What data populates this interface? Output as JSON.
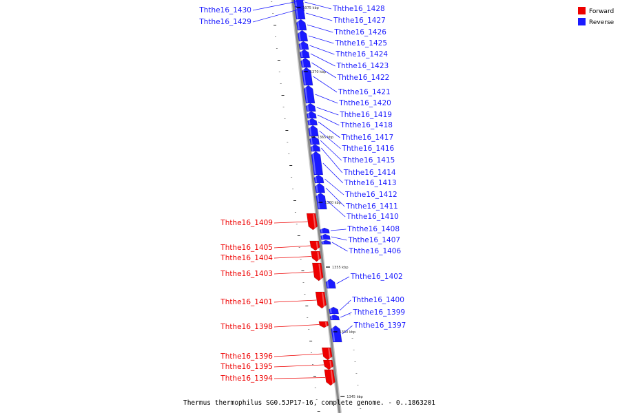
{
  "caption": "Thermus thermophilus SG0.5JP17-16, complete genome. - 0..1863201",
  "legend": [
    {
      "label": "Forward",
      "color": "#ee0000"
    },
    {
      "label": "Reverse",
      "color": "#1a1aff"
    }
  ],
  "colors": {
    "forward": "#ee0000",
    "reverse": "#1a1aff",
    "backbone": "#888888"
  },
  "ticks": [
    "1375 kbp",
    "1370 kbp",
    "1365 kbp",
    "1360 kbp",
    "1355 kbp",
    "1350 kbp",
    "1345 kbp"
  ],
  "genes": [
    {
      "id": "Ththe16_1430",
      "strand": "reverse"
    },
    {
      "id": "Ththe16_1429",
      "strand": "reverse"
    },
    {
      "id": "Ththe16_1428",
      "strand": "reverse"
    },
    {
      "id": "Ththe16_1427",
      "strand": "reverse"
    },
    {
      "id": "Ththe16_1426",
      "strand": "reverse"
    },
    {
      "id": "Ththe16_1425",
      "strand": "reverse"
    },
    {
      "id": "Ththe16_1424",
      "strand": "reverse"
    },
    {
      "id": "Ththe16_1423",
      "strand": "reverse"
    },
    {
      "id": "Ththe16_1422",
      "strand": "reverse"
    },
    {
      "id": "Ththe16_1421",
      "strand": "reverse"
    },
    {
      "id": "Ththe16_1420",
      "strand": "reverse"
    },
    {
      "id": "Ththe16_1419",
      "strand": "reverse"
    },
    {
      "id": "Ththe16_1418",
      "strand": "reverse"
    },
    {
      "id": "Ththe16_1417",
      "strand": "reverse"
    },
    {
      "id": "Ththe16_1416",
      "strand": "reverse"
    },
    {
      "id": "Ththe16_1415",
      "strand": "reverse"
    },
    {
      "id": "Ththe16_1414",
      "strand": "reverse"
    },
    {
      "id": "Ththe16_1413",
      "strand": "reverse"
    },
    {
      "id": "Ththe16_1412",
      "strand": "reverse"
    },
    {
      "id": "Ththe16_1411",
      "strand": "reverse"
    },
    {
      "id": "Ththe16_1410",
      "strand": "reverse"
    },
    {
      "id": "Ththe16_1409",
      "strand": "forward"
    },
    {
      "id": "Ththe16_1408",
      "strand": "reverse"
    },
    {
      "id": "Ththe16_1407",
      "strand": "reverse"
    },
    {
      "id": "Ththe16_1406",
      "strand": "reverse"
    },
    {
      "id": "Ththe16_1405",
      "strand": "forward"
    },
    {
      "id": "Ththe16_1404",
      "strand": "forward"
    },
    {
      "id": "Ththe16_1403",
      "strand": "forward"
    },
    {
      "id": "Ththe16_1402",
      "strand": "reverse"
    },
    {
      "id": "Ththe16_1401",
      "strand": "forward"
    },
    {
      "id": "Ththe16_1400",
      "strand": "reverse"
    },
    {
      "id": "Ththe16_1399",
      "strand": "reverse"
    },
    {
      "id": "Ththe16_1398",
      "strand": "forward"
    },
    {
      "id": "Ththe16_1397",
      "strand": "reverse"
    },
    {
      "id": "Ththe16_1396",
      "strand": "forward"
    },
    {
      "id": "Ththe16_1395",
      "strand": "forward"
    },
    {
      "id": "Ththe16_1394",
      "strand": "forward"
    }
  ]
}
